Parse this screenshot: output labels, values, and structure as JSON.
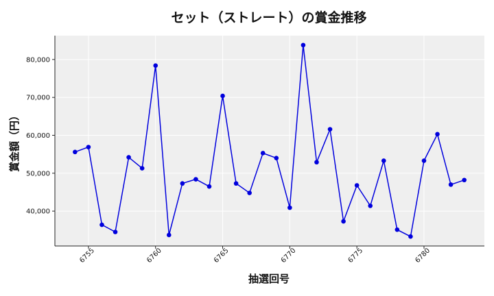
{
  "chart_data": {
    "type": "line",
    "title": "セット（ストレート）の賞金推移",
    "xlabel": "抽選回号",
    "ylabel": "賞金額（円）",
    "x": [
      6754,
      6755,
      6756,
      6757,
      6758,
      6759,
      6760,
      6761,
      6762,
      6763,
      6764,
      6765,
      6766,
      6767,
      6768,
      6769,
      6770,
      6771,
      6772,
      6773,
      6774,
      6775,
      6776,
      6777,
      6778,
      6779,
      6780,
      6781,
      6782,
      6783
    ],
    "series": [
      {
        "values": [
          55600,
          56900,
          36400,
          34500,
          54200,
          51300,
          78400,
          33700,
          47300,
          48400,
          46500,
          70400,
          47300,
          44800,
          55300,
          54000,
          40900,
          83800,
          52900,
          61600,
          37300,
          46800,
          41400,
          53300,
          35100,
          33300,
          53300,
          60300,
          47000,
          48200
        ]
      }
    ],
    "x_ticks": [
      "6755",
      "6760",
      "6765",
      "6770",
      "6775",
      "6780"
    ],
    "y_ticks": [
      "40,000",
      "50,000",
      "60,000",
      "70,000",
      "80,000"
    ],
    "xlim": [
      6752.5,
      6784.5
    ],
    "ylim": [
      30800,
      86300
    ],
    "grid": true,
    "colors": {
      "line": "#0000dd",
      "plot_bg": "#efefef",
      "grid": "#ffffff"
    }
  }
}
